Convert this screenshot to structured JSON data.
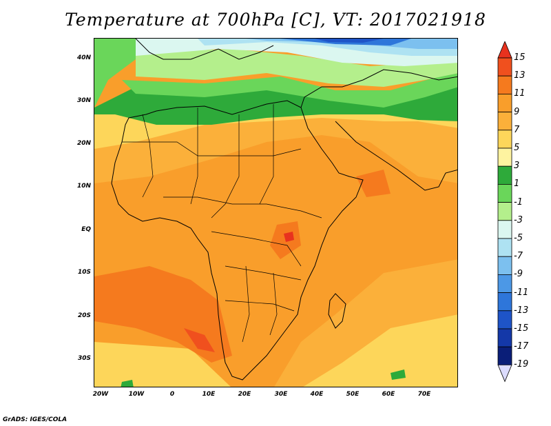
{
  "title": "Temperature at 700hPa [C], VT: 2017021918",
  "credit": "GrADS: IGES/COLA",
  "lat_labels": [
    "40N",
    "30N",
    "20N",
    "10N",
    "EQ",
    "10S",
    "20S",
    "30S"
  ],
  "lon_labels": [
    "20W",
    "10W",
    "0",
    "10E",
    "20E",
    "30E",
    "40E",
    "50E",
    "60E",
    "70E"
  ],
  "colorbar": {
    "labels": [
      "15",
      "13",
      "11",
      "9",
      "7",
      "5",
      "3",
      "1",
      "-1",
      "-3",
      "-5",
      "-7",
      "-9",
      "-11",
      "-13",
      "-15",
      "-17",
      "-19"
    ],
    "colors": [
      "#e8321e",
      "#f0501e",
      "#f57a1e",
      "#f99e2b",
      "#fbb03a",
      "#fdd65a",
      "#fef3a0",
      "#2eaa3a",
      "#6ad65a",
      "#b4ef8c",
      "#dbf7f0",
      "#aee2f2",
      "#7cc0ef",
      "#4c98e6",
      "#2e76da",
      "#1e54c8",
      "#1438a8",
      "#0a1e78",
      "#dcdcff"
    ]
  }
}
